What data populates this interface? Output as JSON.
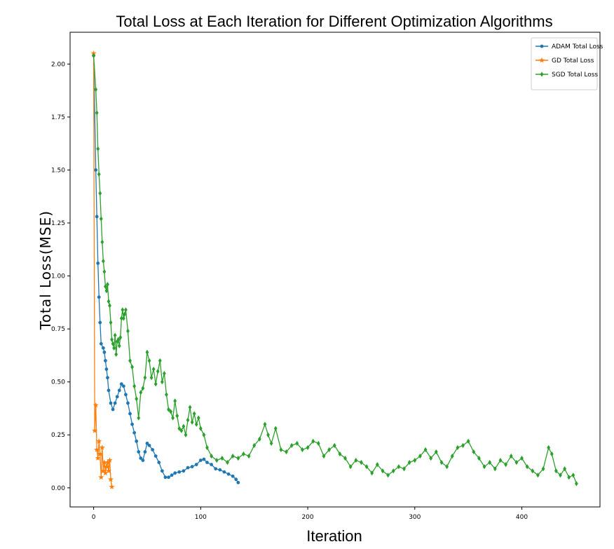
{
  "chart_data": {
    "type": "line",
    "title": "Total Loss at Each Iteration for Different Optimization Algorithms",
    "xlabel": "Iteration",
    "ylabel": "Total Loss(MSE)",
    "xlim": [
      -22,
      473
    ],
    "ylim": [
      -0.09,
      2.15
    ],
    "xticks": [
      0,
      100,
      200,
      300,
      400
    ],
    "yticks": [
      0.0,
      0.25,
      0.5,
      0.75,
      1.0,
      1.25,
      1.5,
      1.75,
      2.0
    ],
    "xtick_labels": [
      "0",
      "100",
      "200",
      "300",
      "400"
    ],
    "ytick_labels": [
      "0.00",
      "0.25",
      "0.50",
      "0.75",
      "1.00",
      "1.25",
      "1.50",
      "1.75",
      "2.00"
    ],
    "grid": false,
    "legend_position": "top-right",
    "series": [
      {
        "name": "ADAM Total Loss",
        "color": "#1f77b4",
        "marker": "circle",
        "points": [
          [
            0,
            2.04
          ],
          [
            2,
            1.5
          ],
          [
            3,
            1.28
          ],
          [
            4,
            1.06
          ],
          [
            5,
            0.9
          ],
          [
            6,
            0.78
          ],
          [
            7,
            0.68
          ],
          [
            9,
            0.66
          ],
          [
            10,
            0.64
          ],
          [
            11,
            0.6
          ],
          [
            12,
            0.56
          ],
          [
            13,
            0.52
          ],
          [
            14,
            0.46
          ],
          [
            16,
            0.4
          ],
          [
            18,
            0.37
          ],
          [
            20,
            0.4
          ],
          [
            22,
            0.43
          ],
          [
            24,
            0.46
          ],
          [
            26,
            0.49
          ],
          [
            28,
            0.48
          ],
          [
            30,
            0.44
          ],
          [
            32,
            0.4
          ],
          [
            34,
            0.35
          ],
          [
            36,
            0.3
          ],
          [
            38,
            0.26
          ],
          [
            40,
            0.22
          ],
          [
            42,
            0.17
          ],
          [
            44,
            0.14
          ],
          [
            46,
            0.13
          ],
          [
            48,
            0.17
          ],
          [
            50,
            0.21
          ],
          [
            52,
            0.2
          ],
          [
            55,
            0.18
          ],
          [
            58,
            0.15
          ],
          [
            61,
            0.12
          ],
          [
            64,
            0.08
          ],
          [
            67,
            0.05
          ],
          [
            70,
            0.05
          ],
          [
            73,
            0.06
          ],
          [
            76,
            0.07
          ],
          [
            80,
            0.075
          ],
          [
            84,
            0.08
          ],
          [
            88,
            0.095
          ],
          [
            92,
            0.1
          ],
          [
            96,
            0.11
          ],
          [
            100,
            0.13
          ],
          [
            103,
            0.135
          ],
          [
            106,
            0.12
          ],
          [
            110,
            0.11
          ],
          [
            114,
            0.09
          ],
          [
            118,
            0.085
          ],
          [
            122,
            0.075
          ],
          [
            126,
            0.065
          ],
          [
            130,
            0.055
          ],
          [
            133,
            0.04
          ],
          [
            135,
            0.025
          ]
        ]
      },
      {
        "name": "GD Total Loss",
        "color": "#ff7f0e",
        "marker": "star",
        "points": [
          [
            0,
            2.05
          ],
          [
            1,
            0.27
          ],
          [
            2,
            0.39
          ],
          [
            3,
            0.18
          ],
          [
            4,
            0.14
          ],
          [
            5,
            0.22
          ],
          [
            6,
            0.16
          ],
          [
            7,
            0.05
          ],
          [
            8,
            0.19
          ],
          [
            9,
            0.08
          ],
          [
            10,
            0.12
          ],
          [
            11,
            0.07
          ],
          [
            12,
            0.1
          ],
          [
            13,
            0.12
          ],
          [
            14,
            0.08
          ],
          [
            15,
            0.13
          ],
          [
            16,
            0.04
          ],
          [
            17,
            0.005
          ]
        ]
      },
      {
        "name": "SGD Total Loss",
        "color": "#2ca02c",
        "marker": "diamond",
        "points": [
          [
            0,
            2.04
          ],
          [
            2,
            1.88
          ],
          [
            3,
            1.77
          ],
          [
            4,
            1.6
          ],
          [
            5,
            1.48
          ],
          [
            6,
            1.39
          ],
          [
            7,
            1.27
          ],
          [
            8,
            1.16
          ],
          [
            9,
            1.07
          ],
          [
            10,
            1.02
          ],
          [
            11,
            0.95
          ],
          [
            12,
            0.93
          ],
          [
            13,
            0.96
          ],
          [
            14,
            0.88
          ],
          [
            15,
            0.86
          ],
          [
            16,
            0.78
          ],
          [
            17,
            0.7
          ],
          [
            18,
            0.68
          ],
          [
            19,
            0.66
          ],
          [
            20,
            0.72
          ],
          [
            21,
            0.63
          ],
          [
            22,
            0.69
          ],
          [
            23,
            0.7
          ],
          [
            24,
            0.67
          ],
          [
            25,
            0.71
          ],
          [
            26,
            0.8
          ],
          [
            27,
            0.84
          ],
          [
            28,
            0.8
          ],
          [
            29,
            0.82
          ],
          [
            30,
            0.84
          ],
          [
            32,
            0.74
          ],
          [
            34,
            0.6
          ],
          [
            36,
            0.57
          ],
          [
            38,
            0.48
          ],
          [
            40,
            0.42
          ],
          [
            42,
            0.33
          ],
          [
            44,
            0.45
          ],
          [
            46,
            0.47
          ],
          [
            48,
            0.52
          ],
          [
            50,
            0.64
          ],
          [
            52,
            0.6
          ],
          [
            54,
            0.52
          ],
          [
            56,
            0.56
          ],
          [
            58,
            0.49
          ],
          [
            60,
            0.55
          ],
          [
            62,
            0.6
          ],
          [
            64,
            0.5
          ],
          [
            66,
            0.54
          ],
          [
            68,
            0.44
          ],
          [
            70,
            0.37
          ],
          [
            72,
            0.36
          ],
          [
            74,
            0.33
          ],
          [
            76,
            0.41
          ],
          [
            78,
            0.34
          ],
          [
            80,
            0.28
          ],
          [
            82,
            0.27
          ],
          [
            84,
            0.29
          ],
          [
            86,
            0.25
          ],
          [
            88,
            0.32
          ],
          [
            90,
            0.38
          ],
          [
            92,
            0.31
          ],
          [
            94,
            0.35
          ],
          [
            96,
            0.3
          ],
          [
            98,
            0.33
          ],
          [
            100,
            0.28
          ],
          [
            103,
            0.25
          ],
          [
            106,
            0.19
          ],
          [
            110,
            0.15
          ],
          [
            115,
            0.13
          ],
          [
            120,
            0.14
          ],
          [
            125,
            0.12
          ],
          [
            130,
            0.15
          ],
          [
            135,
            0.14
          ],
          [
            140,
            0.16
          ],
          [
            145,
            0.15
          ],
          [
            150,
            0.2
          ],
          [
            155,
            0.23
          ],
          [
            160,
            0.3
          ],
          [
            163,
            0.25
          ],
          [
            166,
            0.21
          ],
          [
            170,
            0.28
          ],
          [
            175,
            0.18
          ],
          [
            180,
            0.17
          ],
          [
            185,
            0.2
          ],
          [
            190,
            0.21
          ],
          [
            195,
            0.18
          ],
          [
            200,
            0.19
          ],
          [
            205,
            0.22
          ],
          [
            210,
            0.21
          ],
          [
            215,
            0.15
          ],
          [
            220,
            0.18
          ],
          [
            225,
            0.2
          ],
          [
            230,
            0.16
          ],
          [
            235,
            0.14
          ],
          [
            240,
            0.1
          ],
          [
            245,
            0.13
          ],
          [
            250,
            0.12
          ],
          [
            255,
            0.1
          ],
          [
            260,
            0.07
          ],
          [
            265,
            0.11
          ],
          [
            270,
            0.08
          ],
          [
            275,
            0.06
          ],
          [
            280,
            0.08
          ],
          [
            285,
            0.1
          ],
          [
            290,
            0.09
          ],
          [
            295,
            0.12
          ],
          [
            300,
            0.13
          ],
          [
            305,
            0.15
          ],
          [
            310,
            0.18
          ],
          [
            315,
            0.14
          ],
          [
            320,
            0.17
          ],
          [
            325,
            0.12
          ],
          [
            330,
            0.1
          ],
          [
            335,
            0.15
          ],
          [
            340,
            0.19
          ],
          [
            345,
            0.2
          ],
          [
            350,
            0.22
          ],
          [
            355,
            0.17
          ],
          [
            360,
            0.14
          ],
          [
            365,
            0.1
          ],
          [
            370,
            0.12
          ],
          [
            375,
            0.09
          ],
          [
            380,
            0.13
          ],
          [
            385,
            0.11
          ],
          [
            390,
            0.15
          ],
          [
            395,
            0.12
          ],
          [
            400,
            0.14
          ],
          [
            405,
            0.1
          ],
          [
            410,
            0.08
          ],
          [
            415,
            0.06
          ],
          [
            420,
            0.09
          ],
          [
            425,
            0.19
          ],
          [
            428,
            0.16
          ],
          [
            432,
            0.08
          ],
          [
            436,
            0.06
          ],
          [
            440,
            0.09
          ],
          [
            444,
            0.05
          ],
          [
            448,
            0.06
          ],
          [
            451,
            0.02
          ]
        ]
      }
    ]
  }
}
